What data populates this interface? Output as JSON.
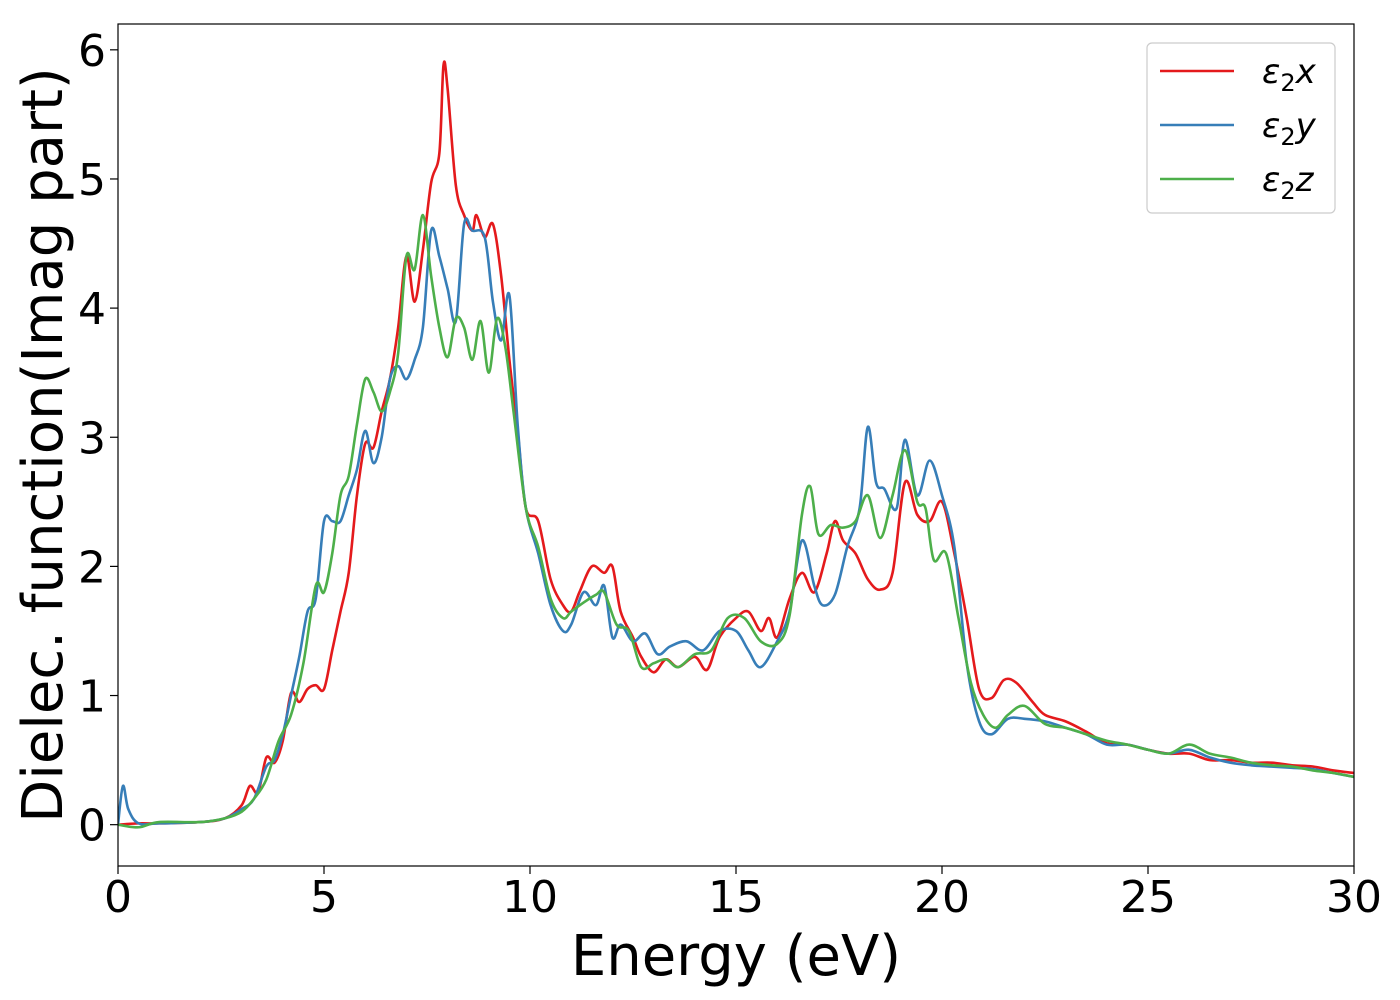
{
  "chart_data": {
    "type": "line",
    "title": "",
    "xlabel": "Energy (eV)",
    "ylabel": "Dielec. function(Imag part)",
    "xlim": [
      0,
      30
    ],
    "ylim": [
      -0.32,
      6.2
    ],
    "xticks": [
      0,
      5,
      10,
      15,
      20,
      25,
      30
    ],
    "yticks": [
      0,
      1,
      2,
      3,
      4,
      5,
      6
    ],
    "grid": false,
    "legend_position": "top-right",
    "series": [
      {
        "name": "ε2x",
        "legend_base": "ε",
        "legend_sub": "2",
        "legend_tail": "x",
        "color": "#e41a1c",
        "points": [
          [
            0,
            0
          ],
          [
            0.5,
            0.01
          ],
          [
            1,
            0.01
          ],
          [
            2,
            0.02
          ],
          [
            2.6,
            0.05
          ],
          [
            3,
            0.15
          ],
          [
            3.2,
            0.3
          ],
          [
            3.4,
            0.25
          ],
          [
            3.6,
            0.52
          ],
          [
            3.8,
            0.48
          ],
          [
            4,
            0.65
          ],
          [
            4.2,
            1.02
          ],
          [
            4.4,
            0.95
          ],
          [
            4.6,
            1.05
          ],
          [
            4.8,
            1.08
          ],
          [
            5,
            1.05
          ],
          [
            5.2,
            1.35
          ],
          [
            5.4,
            1.65
          ],
          [
            5.6,
            1.95
          ],
          [
            5.8,
            2.55
          ],
          [
            6,
            2.95
          ],
          [
            6.2,
            2.92
          ],
          [
            6.4,
            3.2
          ],
          [
            6.6,
            3.45
          ],
          [
            6.8,
            3.85
          ],
          [
            7,
            4.4
          ],
          [
            7.2,
            4.05
          ],
          [
            7.4,
            4.45
          ],
          [
            7.6,
            4.97
          ],
          [
            7.8,
            5.2
          ],
          [
            7.9,
            5.88
          ],
          [
            8,
            5.7
          ],
          [
            8.2,
            4.95
          ],
          [
            8.4,
            4.72
          ],
          [
            8.6,
            4.6
          ],
          [
            8.7,
            4.72
          ],
          [
            8.9,
            4.55
          ],
          [
            9.1,
            4.65
          ],
          [
            9.3,
            4.25
          ],
          [
            9.5,
            3.6
          ],
          [
            9.7,
            3.05
          ],
          [
            9.9,
            2.45
          ],
          [
            10.2,
            2.35
          ],
          [
            10.5,
            1.9
          ],
          [
            10.8,
            1.7
          ],
          [
            11,
            1.65
          ],
          [
            11.2,
            1.8
          ],
          [
            11.5,
            2.0
          ],
          [
            11.8,
            1.95
          ],
          [
            12,
            2.0
          ],
          [
            12.2,
            1.65
          ],
          [
            12.5,
            1.45
          ],
          [
            12.7,
            1.3
          ],
          [
            13,
            1.18
          ],
          [
            13.3,
            1.28
          ],
          [
            13.6,
            1.22
          ],
          [
            14,
            1.3
          ],
          [
            14.3,
            1.2
          ],
          [
            14.6,
            1.45
          ],
          [
            15,
            1.6
          ],
          [
            15.3,
            1.65
          ],
          [
            15.6,
            1.5
          ],
          [
            15.8,
            1.6
          ],
          [
            16,
            1.45
          ],
          [
            16.3,
            1.75
          ],
          [
            16.6,
            1.95
          ],
          [
            16.9,
            1.8
          ],
          [
            17.2,
            2.1
          ],
          [
            17.4,
            2.35
          ],
          [
            17.6,
            2.2
          ],
          [
            17.9,
            2.1
          ],
          [
            18.2,
            1.9
          ],
          [
            18.5,
            1.82
          ],
          [
            18.8,
            1.95
          ],
          [
            19.1,
            2.65
          ],
          [
            19.4,
            2.4
          ],
          [
            19.7,
            2.35
          ],
          [
            20,
            2.5
          ],
          [
            20.3,
            2.1
          ],
          [
            20.6,
            1.6
          ],
          [
            20.9,
            1.05
          ],
          [
            21.2,
            0.98
          ],
          [
            21.5,
            1.12
          ],
          [
            21.8,
            1.1
          ],
          [
            22.2,
            0.95
          ],
          [
            22.5,
            0.85
          ],
          [
            23,
            0.8
          ],
          [
            23.5,
            0.72
          ],
          [
            24,
            0.63
          ],
          [
            24.5,
            0.62
          ],
          [
            25,
            0.58
          ],
          [
            25.5,
            0.55
          ],
          [
            26,
            0.55
          ],
          [
            26.5,
            0.5
          ],
          [
            27,
            0.5
          ],
          [
            27.5,
            0.48
          ],
          [
            28,
            0.48
          ],
          [
            28.5,
            0.46
          ],
          [
            29,
            0.45
          ],
          [
            29.5,
            0.42
          ],
          [
            30,
            0.4
          ]
        ]
      },
      {
        "name": "ε2y",
        "legend_base": "ε",
        "legend_sub": "2",
        "legend_tail": "y",
        "color": "#377eb8",
        "points": [
          [
            0,
            0
          ],
          [
            0.12,
            0.3
          ],
          [
            0.25,
            0.12
          ],
          [
            0.5,
            0.01
          ],
          [
            1,
            0.01
          ],
          [
            2,
            0.02
          ],
          [
            2.6,
            0.05
          ],
          [
            3,
            0.12
          ],
          [
            3.3,
            0.2
          ],
          [
            3.6,
            0.45
          ],
          [
            3.8,
            0.5
          ],
          [
            4,
            0.7
          ],
          [
            4.2,
            1.0
          ],
          [
            4.4,
            1.3
          ],
          [
            4.6,
            1.65
          ],
          [
            4.8,
            1.75
          ],
          [
            5,
            2.35
          ],
          [
            5.2,
            2.35
          ],
          [
            5.4,
            2.35
          ],
          [
            5.6,
            2.55
          ],
          [
            5.8,
            2.75
          ],
          [
            6,
            3.05
          ],
          [
            6.2,
            2.8
          ],
          [
            6.4,
            3.0
          ],
          [
            6.6,
            3.45
          ],
          [
            6.8,
            3.55
          ],
          [
            7,
            3.45
          ],
          [
            7.2,
            3.6
          ],
          [
            7.4,
            3.85
          ],
          [
            7.6,
            4.6
          ],
          [
            7.8,
            4.4
          ],
          [
            8,
            4.15
          ],
          [
            8.2,
            3.9
          ],
          [
            8.4,
            4.65
          ],
          [
            8.6,
            4.6
          ],
          [
            8.9,
            4.55
          ],
          [
            9.1,
            4.05
          ],
          [
            9.3,
            3.75
          ],
          [
            9.5,
            4.1
          ],
          [
            9.7,
            3.1
          ],
          [
            9.9,
            2.45
          ],
          [
            10.2,
            2.1
          ],
          [
            10.5,
            1.7
          ],
          [
            10.8,
            1.5
          ],
          [
            11,
            1.55
          ],
          [
            11.3,
            1.8
          ],
          [
            11.6,
            1.7
          ],
          [
            11.8,
            1.85
          ],
          [
            12,
            1.45
          ],
          [
            12.2,
            1.55
          ],
          [
            12.5,
            1.42
          ],
          [
            12.8,
            1.48
          ],
          [
            13.1,
            1.32
          ],
          [
            13.4,
            1.38
          ],
          [
            13.8,
            1.42
          ],
          [
            14.2,
            1.35
          ],
          [
            14.6,
            1.5
          ],
          [
            15,
            1.5
          ],
          [
            15.3,
            1.35
          ],
          [
            15.6,
            1.22
          ],
          [
            16,
            1.42
          ],
          [
            16.3,
            1.65
          ],
          [
            16.6,
            2.2
          ],
          [
            16.9,
            1.85
          ],
          [
            17.1,
            1.7
          ],
          [
            17.4,
            1.78
          ],
          [
            17.7,
            2.15
          ],
          [
            18,
            2.45
          ],
          [
            18.2,
            3.08
          ],
          [
            18.4,
            2.65
          ],
          [
            18.6,
            2.6
          ],
          [
            18.9,
            2.45
          ],
          [
            19.1,
            2.98
          ],
          [
            19.4,
            2.55
          ],
          [
            19.7,
            2.82
          ],
          [
            20,
            2.55
          ],
          [
            20.3,
            2.15
          ],
          [
            20.6,
            1.25
          ],
          [
            20.9,
            0.8
          ],
          [
            21.2,
            0.7
          ],
          [
            21.6,
            0.82
          ],
          [
            22,
            0.82
          ],
          [
            22.5,
            0.8
          ],
          [
            23,
            0.75
          ],
          [
            23.5,
            0.7
          ],
          [
            24,
            0.62
          ],
          [
            24.5,
            0.62
          ],
          [
            25,
            0.58
          ],
          [
            25.5,
            0.55
          ],
          [
            26,
            0.58
          ],
          [
            26.5,
            0.52
          ],
          [
            27,
            0.48
          ],
          [
            27.5,
            0.46
          ],
          [
            28,
            0.45
          ],
          [
            28.5,
            0.44
          ],
          [
            29,
            0.43
          ],
          [
            29.5,
            0.4
          ],
          [
            30,
            0.37
          ]
        ]
      },
      {
        "name": "ε2z",
        "legend_base": "ε",
        "legend_sub": "2",
        "legend_tail": "z",
        "color": "#4daf4a",
        "points": [
          [
            0,
            0
          ],
          [
            0.5,
            -0.02
          ],
          [
            1,
            0.02
          ],
          [
            2,
            0.02
          ],
          [
            2.6,
            0.05
          ],
          [
            3,
            0.1
          ],
          [
            3.3,
            0.2
          ],
          [
            3.6,
            0.35
          ],
          [
            3.9,
            0.65
          ],
          [
            4.2,
            0.85
          ],
          [
            4.5,
            1.25
          ],
          [
            4.8,
            1.85
          ],
          [
            5,
            1.8
          ],
          [
            5.2,
            2.1
          ],
          [
            5.4,
            2.55
          ],
          [
            5.6,
            2.7
          ],
          [
            5.8,
            3.1
          ],
          [
            6,
            3.45
          ],
          [
            6.2,
            3.35
          ],
          [
            6.4,
            3.2
          ],
          [
            6.6,
            3.35
          ],
          [
            6.8,
            3.65
          ],
          [
            7,
            4.4
          ],
          [
            7.2,
            4.3
          ],
          [
            7.4,
            4.72
          ],
          [
            7.6,
            4.25
          ],
          [
            7.8,
            3.85
          ],
          [
            8,
            3.62
          ],
          [
            8.2,
            3.92
          ],
          [
            8.4,
            3.85
          ],
          [
            8.6,
            3.6
          ],
          [
            8.8,
            3.9
          ],
          [
            9,
            3.5
          ],
          [
            9.2,
            3.92
          ],
          [
            9.4,
            3.7
          ],
          [
            9.6,
            3.2
          ],
          [
            9.9,
            2.45
          ],
          [
            10.2,
            2.15
          ],
          [
            10.5,
            1.75
          ],
          [
            10.8,
            1.6
          ],
          [
            11,
            1.65
          ],
          [
            11.3,
            1.72
          ],
          [
            11.6,
            1.78
          ],
          [
            11.8,
            1.8
          ],
          [
            12.1,
            1.55
          ],
          [
            12.4,
            1.5
          ],
          [
            12.7,
            1.22
          ],
          [
            13,
            1.25
          ],
          [
            13.3,
            1.28
          ],
          [
            13.6,
            1.22
          ],
          [
            14,
            1.32
          ],
          [
            14.4,
            1.35
          ],
          [
            14.8,
            1.6
          ],
          [
            15.2,
            1.6
          ],
          [
            15.6,
            1.42
          ],
          [
            16,
            1.4
          ],
          [
            16.3,
            1.62
          ],
          [
            16.6,
            2.4
          ],
          [
            16.8,
            2.62
          ],
          [
            17,
            2.25
          ],
          [
            17.3,
            2.32
          ],
          [
            17.6,
            2.3
          ],
          [
            17.9,
            2.35
          ],
          [
            18.2,
            2.55
          ],
          [
            18.5,
            2.22
          ],
          [
            18.8,
            2.55
          ],
          [
            19.1,
            2.9
          ],
          [
            19.4,
            2.5
          ],
          [
            19.6,
            2.45
          ],
          [
            19.8,
            2.05
          ],
          [
            20.1,
            2.1
          ],
          [
            20.4,
            1.6
          ],
          [
            20.7,
            1.1
          ],
          [
            21,
            0.85
          ],
          [
            21.3,
            0.75
          ],
          [
            21.6,
            0.85
          ],
          [
            22,
            0.92
          ],
          [
            22.5,
            0.78
          ],
          [
            23,
            0.75
          ],
          [
            23.5,
            0.7
          ],
          [
            24,
            0.65
          ],
          [
            24.5,
            0.62
          ],
          [
            25,
            0.58
          ],
          [
            25.5,
            0.55
          ],
          [
            26,
            0.62
          ],
          [
            26.5,
            0.55
          ],
          [
            27,
            0.52
          ],
          [
            27.5,
            0.48
          ],
          [
            28,
            0.46
          ],
          [
            28.5,
            0.45
          ],
          [
            29,
            0.42
          ],
          [
            29.5,
            0.4
          ],
          [
            30,
            0.37
          ]
        ]
      }
    ]
  }
}
